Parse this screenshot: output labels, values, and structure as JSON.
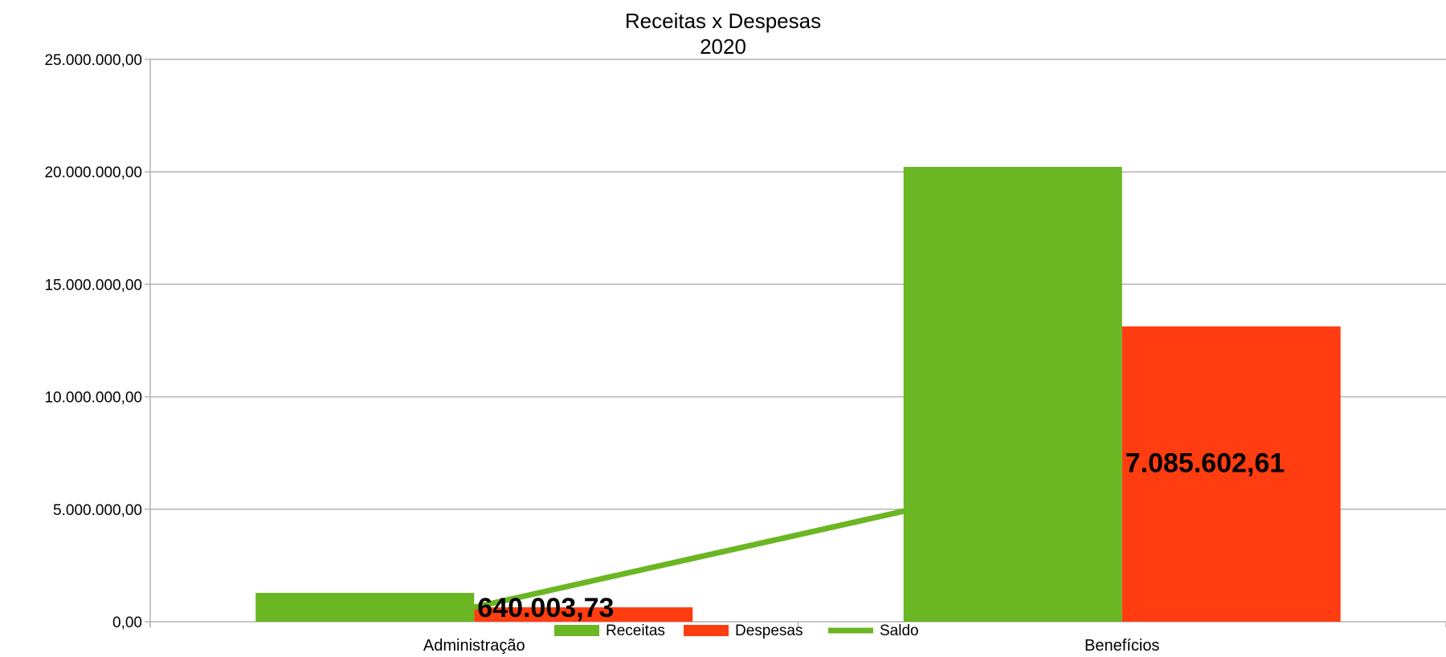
{
  "chart_data": {
    "type": "bar",
    "title": "Receitas x Despesas",
    "subtitle": "2020",
    "categories": [
      "Administração",
      "Benefícios"
    ],
    "series": [
      {
        "name": "Receitas",
        "kind": "bar",
        "color": "#6ab623",
        "values": [
          1280000,
          20220000
        ]
      },
      {
        "name": "Despesas",
        "kind": "bar",
        "color": "#ff3d10",
        "values": [
          640000,
          13130000
        ]
      },
      {
        "name": "Saldo",
        "kind": "line",
        "color": "#6ab623",
        "values": [
          640003.73,
          7085602.61
        ],
        "labels": [
          "640.003,73",
          "7.085.602,61"
        ]
      }
    ],
    "ylim": [
      0,
      25000000
    ],
    "y_ticks": [
      0,
      5000000,
      10000000,
      15000000,
      20000000,
      25000000
    ],
    "y_tick_labels": [
      "0,00",
      "5.000.000,00",
      "10.000.000,00",
      "15.000.000,00",
      "20.000.000,00",
      "25.000.000,00"
    ],
    "grid": true,
    "legend_position": "bottom"
  }
}
